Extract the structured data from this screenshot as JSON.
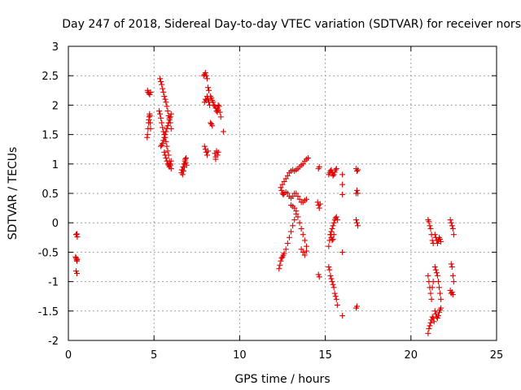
{
  "chart_data": {
    "type": "scatter",
    "title": "Day 247 of 2018, Sidereal Day-to-day VTEC variation (SDTVAR) for receiver nors",
    "xlabel": "GPS time / hours",
    "ylabel": "SDTVAR / TECUs",
    "xlim": [
      0,
      25
    ],
    "ylim": [
      -2,
      3
    ],
    "xticks": [
      0,
      5,
      10,
      15,
      20,
      25
    ],
    "xtick_labels": [
      "0",
      "5",
      "10",
      "15",
      "20",
      "25"
    ],
    "yticks": [
      -2,
      -1.5,
      -1,
      -0.5,
      0,
      0.5,
      1,
      1.5,
      2,
      2.5,
      3
    ],
    "ytick_labels": [
      "-2",
      "-1.5",
      "-1",
      "-0.5",
      "0",
      "0.5",
      "1",
      "1.5",
      "2",
      "2.5",
      "3"
    ],
    "grid": true,
    "marker": "plus",
    "color": "#e00000",
    "segments": [
      {
        "x": [
          0.45,
          0.47,
          0.5,
          0.52
        ],
        "y": [
          -0.2,
          -0.2,
          -0.19,
          -0.24
        ]
      },
      {
        "x": [
          0.42,
          0.45,
          0.48,
          0.5,
          0.52
        ],
        "y": [
          -0.58,
          -0.6,
          -0.63,
          -0.65,
          -0.62
        ]
      },
      {
        "x": [
          0.45,
          0.5
        ],
        "y": [
          -0.82,
          -0.86
        ]
      },
      {
        "x": [
          4.62,
          4.65,
          4.7,
          4.75,
          4.8
        ],
        "y": [
          2.25,
          2.22,
          2.2,
          2.18,
          2.22
        ]
      },
      {
        "x": [
          4.6,
          4.62,
          4.65,
          4.68,
          4.7,
          4.72,
          4.74,
          4.76,
          4.78,
          4.8
        ],
        "y": [
          1.45,
          1.5,
          1.6,
          1.7,
          1.75,
          1.8,
          1.85,
          1.82,
          1.7,
          1.6
        ]
      },
      {
        "x": [
          5.35,
          5.4,
          5.45,
          5.5,
          5.55,
          5.6,
          5.65,
          5.7,
          5.75,
          5.8,
          5.85,
          5.9,
          5.95,
          6.0
        ],
        "y": [
          2.45,
          2.4,
          2.35,
          2.28,
          2.22,
          2.15,
          2.1,
          2.05,
          1.98,
          1.9,
          1.82,
          1.78,
          1.7,
          1.6
        ]
      },
      {
        "x": [
          5.3,
          5.35,
          5.4,
          5.45,
          5.5,
          5.55,
          5.6,
          5.65,
          5.7,
          5.75,
          5.8,
          5.85,
          5.9,
          5.95,
          6.0
        ],
        "y": [
          1.9,
          1.85,
          1.78,
          1.7,
          1.62,
          1.55,
          1.5,
          1.45,
          1.38,
          1.3,
          1.22,
          1.15,
          1.05,
          0.98,
          0.92
        ]
      },
      {
        "x": [
          5.4,
          5.45,
          5.5,
          5.55,
          5.6,
          5.65,
          5.7,
          5.75,
          5.8,
          5.85,
          5.9,
          5.95,
          6.0
        ],
        "y": [
          1.3,
          1.32,
          1.35,
          1.4,
          1.45,
          1.5,
          1.55,
          1.6,
          1.65,
          1.7,
          1.75,
          1.8,
          1.85
        ]
      },
      {
        "x": [
          5.6,
          5.65,
          5.7,
          5.75,
          5.8,
          5.85,
          5.9,
          5.95,
          6.0
        ],
        "y": [
          1.2,
          1.15,
          1.1,
          1.05,
          1.0,
          0.98,
          0.95,
          1.0,
          1.05
        ]
      },
      {
        "x": [
          6.6,
          6.65,
          6.7,
          6.75,
          6.8,
          6.85,
          6.9
        ],
        "y": [
          0.85,
          0.9,
          0.95,
          1.0,
          1.05,
          1.02,
          0.98
        ]
      },
      {
        "x": [
          6.62,
          6.67,
          6.72,
          6.77,
          6.82,
          6.87
        ],
        "y": [
          0.9,
          0.82,
          0.88,
          0.95,
          1.08,
          1.1
        ]
      },
      {
        "x": [
          7.9,
          7.95,
          8.0,
          8.05,
          8.1,
          8.15,
          8.2
        ],
        "y": [
          2.5,
          2.52,
          2.55,
          2.5,
          2.45,
          2.3,
          2.25
        ]
      },
      {
        "x": [
          7.95,
          8.0,
          8.05,
          8.1,
          8.15,
          8.2,
          8.25
        ],
        "y": [
          2.05,
          2.1,
          2.08,
          2.15,
          2.1,
          2.05,
          2.0
        ]
      },
      {
        "x": [
          7.95,
          8.0,
          8.05,
          8.1,
          8.15
        ],
        "y": [
          1.3,
          1.25,
          1.2,
          1.15,
          1.22
        ]
      },
      {
        "x": [
          8.3,
          8.35,
          8.4,
          8.45,
          8.5,
          8.55,
          8.6,
          8.65,
          8.7,
          8.75
        ],
        "y": [
          2.15,
          2.12,
          2.08,
          2.05,
          2.0,
          1.98,
          1.95,
          1.9,
          1.88,
          1.92
        ]
      },
      {
        "x": [
          8.7,
          8.75,
          8.8,
          8.85,
          8.9
        ],
        "y": [
          1.95,
          2.0,
          1.98,
          1.88,
          1.8
        ]
      },
      {
        "x": [
          8.3,
          8.35,
          8.4
        ],
        "y": [
          1.7,
          1.68,
          1.65
        ]
      },
      {
        "x": [
          8.55,
          8.6,
          8.65,
          8.7,
          8.75
        ],
        "y": [
          1.18,
          1.12,
          1.22,
          1.15,
          1.2
        ]
      },
      {
        "x": [
          8.6
        ],
        "y": [
          1.08
        ]
      },
      {
        "x": [
          9.05
        ],
        "y": [
          1.55
        ]
      },
      {
        "x": [
          12.5,
          12.6,
          12.7,
          12.8,
          12.9,
          13.0,
          13.1,
          13.2,
          13.3,
          13.4,
          13.5,
          13.6,
          13.7,
          13.8,
          13.9,
          14.0
        ],
        "y": [
          0.65,
          0.7,
          0.75,
          0.8,
          0.85,
          0.88,
          0.9,
          0.88,
          0.9,
          0.92,
          0.95,
          0.98,
          1.0,
          1.05,
          1.08,
          1.1
        ]
      },
      {
        "x": [
          12.4,
          12.45,
          12.5,
          12.55,
          12.6,
          12.7,
          12.8,
          12.9,
          13.0,
          13.1,
          13.2
        ],
        "y": [
          0.6,
          0.55,
          0.5,
          0.48,
          0.5,
          0.52,
          0.5,
          0.45,
          0.42,
          0.45,
          0.5
        ]
      },
      {
        "x": [
          12.3,
          12.35,
          12.4,
          12.45,
          12.5,
          12.55,
          12.6,
          12.7,
          12.8,
          12.9,
          13.0,
          13.1,
          13.2,
          13.3
        ],
        "y": [
          -0.78,
          -0.72,
          -0.65,
          -0.6,
          -0.58,
          -0.55,
          -0.52,
          -0.45,
          -0.35,
          -0.25,
          -0.15,
          -0.05,
          0.05,
          0.15
        ]
      },
      {
        "x": [
          13.0,
          13.1,
          13.2,
          13.3,
          13.4,
          13.5,
          13.6,
          13.7,
          13.8,
          13.9
        ],
        "y": [
          0.3,
          0.28,
          0.25,
          0.2,
          0.1,
          0.0,
          -0.1,
          -0.2,
          -0.3,
          -0.4
        ]
      },
      {
        "x": [
          13.3,
          13.4,
          13.5,
          13.6,
          13.7,
          13.8,
          13.9
        ],
        "y": [
          0.5,
          0.45,
          0.4,
          0.35,
          0.35,
          0.38,
          0.4
        ]
      },
      {
        "x": [
          13.6,
          13.7,
          13.8,
          13.9
        ],
        "y": [
          -0.45,
          -0.5,
          -0.55,
          -0.48
        ]
      },
      {
        "x": [
          14.6,
          14.65
        ],
        "y": [
          0.92,
          0.95
        ]
      },
      {
        "x": [
          14.55,
          14.6,
          14.65,
          14.7
        ],
        "y": [
          0.35,
          0.3,
          0.25,
          0.32
        ]
      },
      {
        "x": [
          14.6,
          14.65
        ],
        "y": [
          -0.88,
          -0.92
        ]
      },
      {
        "x": [
          15.2,
          15.25,
          15.3,
          15.35,
          15.4,
          15.45,
          15.5,
          15.55,
          15.6,
          15.65
        ],
        "y": [
          0.82,
          0.85,
          0.88,
          0.9,
          0.85,
          0.8,
          0.82,
          0.86,
          0.9,
          0.92
        ]
      },
      {
        "x": [
          15.2,
          15.25,
          15.3,
          15.35,
          15.4,
          15.45,
          15.5,
          15.55,
          15.6,
          15.65,
          15.7
        ],
        "y": [
          -0.4,
          -0.3,
          -0.2,
          -0.15,
          -0.1,
          -0.05,
          0.0,
          0.05,
          0.08,
          0.1,
          0.05
        ]
      },
      {
        "x": [
          15.2,
          15.25,
          15.3,
          15.35,
          15.4,
          15.45,
          15.5,
          15.55,
          15.6,
          15.65,
          15.7
        ],
        "y": [
          -0.75,
          -0.8,
          -0.9,
          -0.95,
          -1.0,
          -1.05,
          -1.1,
          -1.2,
          -1.25,
          -1.3,
          -1.4
        ]
      },
      {
        "x": [
          15.3,
          15.35,
          15.4,
          15.45,
          15.5
        ],
        "y": [
          -0.2,
          -0.25,
          -0.3,
          -0.28,
          -0.2
        ]
      },
      {
        "x": [
          16.0
        ],
        "y": [
          0.82
        ]
      },
      {
        "x": [
          16.0
        ],
        "y": [
          0.65
        ]
      },
      {
        "x": [
          16.0
        ],
        "y": [
          0.48
        ]
      },
      {
        "x": [
          16.0
        ],
        "y": [
          -0.5
        ]
      },
      {
        "x": [
          16.0
        ],
        "y": [
          -1.58
        ]
      },
      {
        "x": [
          16.8,
          16.85,
          16.9
        ],
        "y": [
          0.92,
          0.88,
          0.9
        ]
      },
      {
        "x": [
          16.8,
          16.85,
          16.9
        ],
        "y": [
          0.5,
          0.55,
          0.5
        ]
      },
      {
        "x": [
          16.8,
          16.85,
          16.9
        ],
        "y": [
          0.05,
          0.0,
          -0.05
        ]
      },
      {
        "x": [
          16.8,
          16.85
        ],
        "y": [
          -1.45,
          -1.42
        ]
      },
      {
        "x": [
          21.0,
          21.05,
          21.1,
          21.15,
          21.2,
          21.25,
          21.3
        ],
        "y": [
          0.05,
          0.02,
          -0.05,
          -0.1,
          -0.2,
          -0.3,
          -0.35
        ]
      },
      {
        "x": [
          21.0,
          21.05,
          21.1,
          21.15,
          21.2,
          21.25,
          21.3
        ],
        "y": [
          -0.9,
          -1.0,
          -1.1,
          -1.2,
          -1.3,
          -1.1,
          -1.0
        ]
      },
      {
        "x": [
          21.0,
          21.05,
          21.1,
          21.15,
          21.2,
          21.25,
          21.3,
          21.35
        ],
        "y": [
          -1.88,
          -1.8,
          -1.75,
          -1.7,
          -1.65,
          -1.6,
          -1.62,
          -1.68
        ]
      },
      {
        "x": [
          21.4,
          21.45,
          21.5,
          21.55,
          21.6,
          21.65,
          21.7,
          21.75
        ],
        "y": [
          -0.2,
          -0.25,
          -0.3,
          -0.35,
          -0.3,
          -0.25,
          -0.28,
          -0.32
        ]
      },
      {
        "x": [
          21.4,
          21.45,
          21.5,
          21.55,
          21.6,
          21.65,
          21.7,
          21.75
        ],
        "y": [
          -0.75,
          -0.8,
          -0.85,
          -0.9,
          -1.0,
          -1.1,
          -1.2,
          -1.3
        ]
      },
      {
        "x": [
          21.4,
          21.45,
          21.5,
          21.55,
          21.6,
          21.65,
          21.7,
          21.75
        ],
        "y": [
          -1.5,
          -1.55,
          -1.6,
          -1.62,
          -1.58,
          -1.52,
          -1.48,
          -1.45
        ]
      },
      {
        "x": [
          22.3,
          22.35,
          22.4,
          22.45,
          22.5
        ],
        "y": [
          0.05,
          0.0,
          -0.05,
          -0.1,
          -0.2
        ]
      },
      {
        "x": [
          22.35,
          22.4,
          22.45,
          22.5
        ],
        "y": [
          -0.7,
          -0.75,
          -0.9,
          -1.0
        ]
      },
      {
        "x": [
          22.3,
          22.35,
          22.4,
          22.45
        ],
        "y": [
          -1.15,
          -1.2,
          -1.18,
          -1.22
        ]
      }
    ]
  }
}
